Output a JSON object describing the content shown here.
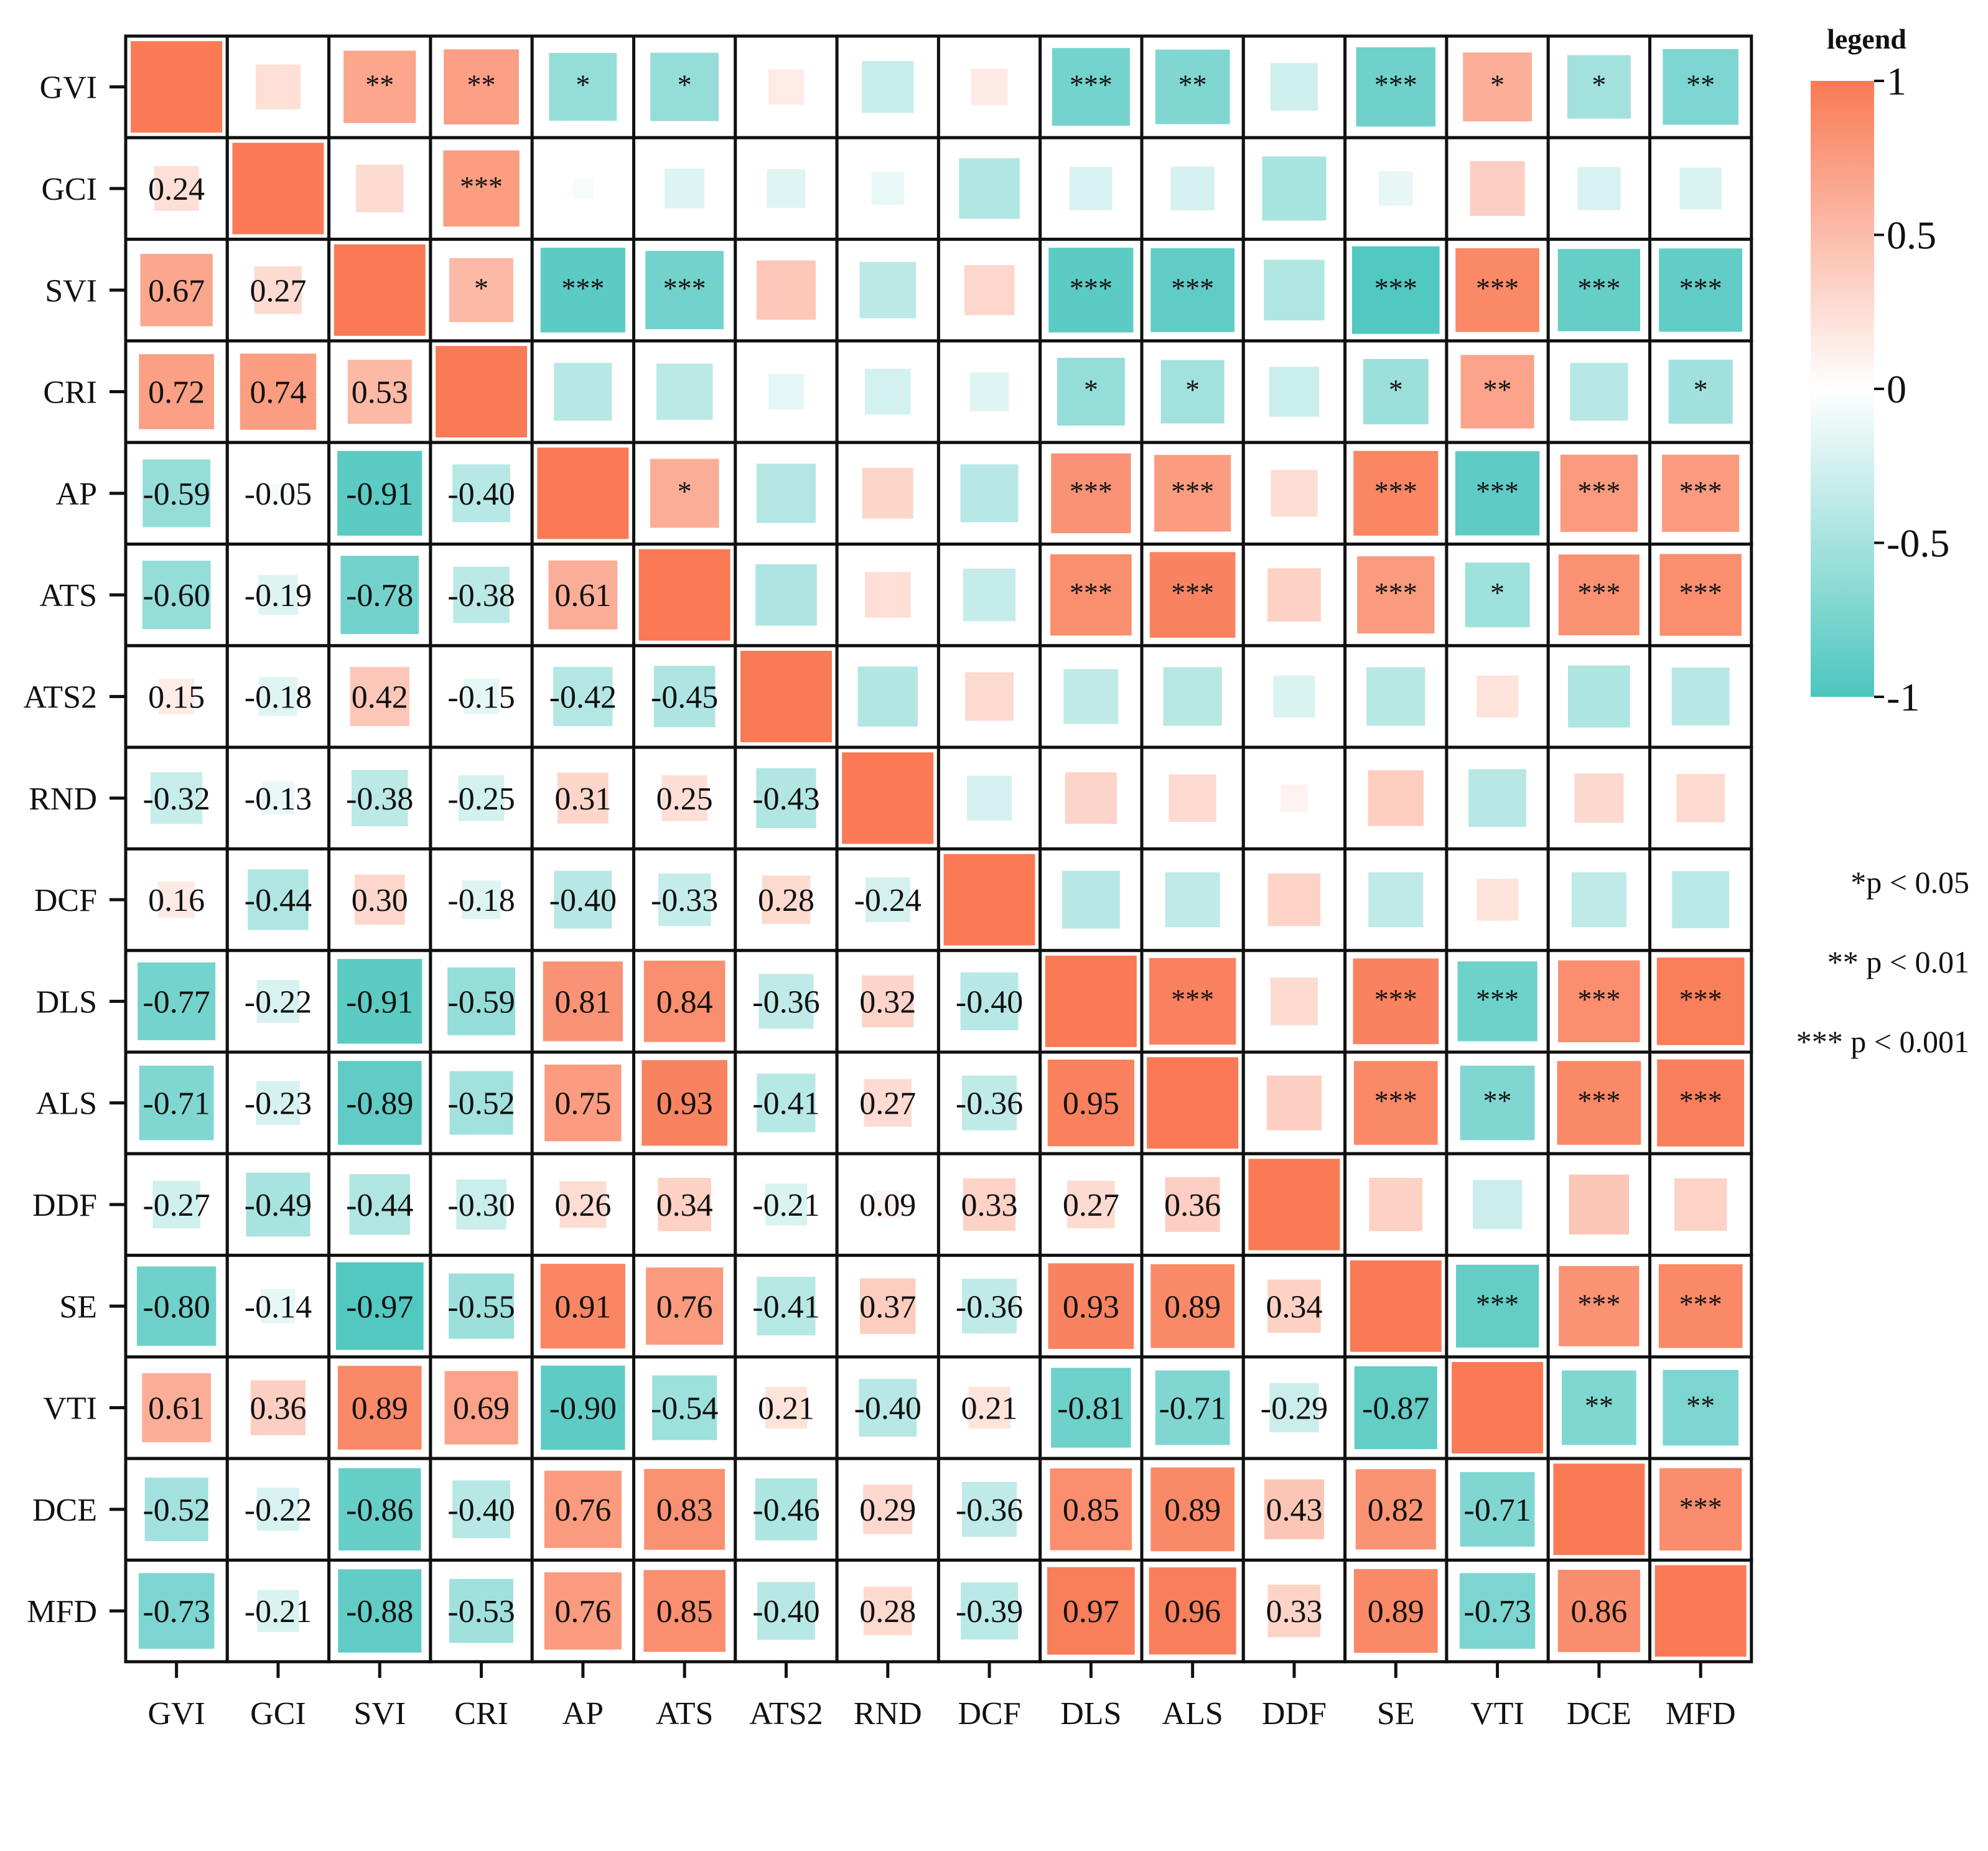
{
  "chart_data": {
    "type": "heatmap",
    "variant": "correlation-matrix",
    "lower_triangle": "correlation values (text labels)",
    "upper_triangle": "significance stars",
    "variables": [
      "GVI",
      "GCI",
      "SVI",
      "CRI",
      "AP",
      "ATS",
      "ATS2",
      "RND",
      "DCF",
      "DLS",
      "ALS",
      "DDF",
      "SE",
      "VTI",
      "DCE",
      "MFD"
    ],
    "value_range": [
      -1,
      1
    ],
    "matrix": [
      [
        1,
        0.24,
        0.67,
        0.72,
        -0.59,
        -0.6,
        0.15,
        -0.32,
        0.16,
        -0.77,
        -0.71,
        -0.27,
        -0.8,
        0.61,
        -0.52,
        -0.73
      ],
      [
        0.24,
        1,
        0.27,
        0.74,
        -0.05,
        -0.19,
        -0.18,
        -0.13,
        -0.44,
        -0.22,
        -0.23,
        -0.49,
        -0.14,
        0.36,
        -0.22,
        -0.21
      ],
      [
        0.67,
        0.27,
        1,
        0.53,
        -0.91,
        -0.78,
        0.42,
        -0.38,
        0.3,
        -0.91,
        -0.89,
        -0.44,
        -0.97,
        0.89,
        -0.86,
        -0.88
      ],
      [
        0.72,
        0.74,
        0.53,
        1,
        -0.4,
        -0.38,
        -0.15,
        -0.25,
        -0.18,
        -0.59,
        -0.52,
        -0.3,
        -0.55,
        0.69,
        -0.4,
        -0.53
      ],
      [
        -0.59,
        -0.05,
        -0.91,
        -0.4,
        1,
        0.61,
        -0.42,
        0.31,
        -0.4,
        0.81,
        0.75,
        0.26,
        0.91,
        -0.9,
        0.76,
        0.76
      ],
      [
        -0.6,
        -0.19,
        -0.78,
        -0.38,
        0.61,
        1,
        -0.45,
        0.25,
        -0.33,
        0.84,
        0.93,
        0.34,
        0.76,
        -0.54,
        0.83,
        0.85
      ],
      [
        0.15,
        -0.18,
        0.42,
        -0.15,
        -0.42,
        -0.45,
        1,
        -0.43,
        0.28,
        -0.36,
        -0.41,
        -0.21,
        -0.41,
        0.21,
        -0.46,
        -0.4
      ],
      [
        -0.32,
        -0.13,
        -0.38,
        -0.25,
        0.31,
        0.25,
        -0.43,
        1,
        -0.24,
        0.32,
        0.27,
        0.09,
        0.37,
        -0.4,
        0.29,
        0.28
      ],
      [
        0.16,
        -0.44,
        0.3,
        -0.18,
        -0.4,
        -0.33,
        0.28,
        -0.24,
        1,
        -0.4,
        -0.36,
        0.33,
        -0.36,
        0.21,
        -0.36,
        -0.39
      ],
      [
        -0.77,
        -0.22,
        -0.91,
        -0.59,
        0.81,
        0.84,
        -0.36,
        0.32,
        -0.4,
        1,
        0.95,
        0.27,
        0.93,
        -0.81,
        0.85,
        0.97
      ],
      [
        -0.71,
        -0.23,
        -0.89,
        -0.52,
        0.75,
        0.93,
        -0.41,
        0.27,
        -0.36,
        0.95,
        1,
        0.36,
        0.89,
        -0.71,
        0.89,
        0.96
      ],
      [
        -0.27,
        -0.49,
        -0.44,
        -0.3,
        0.26,
        0.34,
        -0.21,
        0.09,
        0.33,
        0.27,
        0.36,
        1,
        0.34,
        -0.29,
        0.43,
        0.33
      ],
      [
        -0.8,
        -0.14,
        -0.97,
        -0.55,
        0.91,
        0.76,
        -0.41,
        0.37,
        -0.36,
        0.93,
        0.89,
        0.34,
        1,
        -0.87,
        0.82,
        0.89
      ],
      [
        0.61,
        0.36,
        0.89,
        0.69,
        -0.9,
        -0.54,
        0.21,
        -0.4,
        0.21,
        -0.81,
        -0.71,
        -0.29,
        -0.87,
        1,
        -0.71,
        -0.73
      ],
      [
        -0.52,
        -0.22,
        -0.86,
        -0.4,
        0.76,
        0.83,
        -0.46,
        0.29,
        -0.36,
        0.85,
        0.89,
        0.43,
        0.82,
        -0.71,
        1,
        0.86
      ],
      [
        -0.73,
        -0.21,
        -0.88,
        -0.53,
        0.76,
        0.85,
        -0.4,
        0.28,
        -0.39,
        0.97,
        0.96,
        0.33,
        0.89,
        -0.73,
        0.86,
        1
      ]
    ],
    "significance": [
      [
        "",
        "",
        "**",
        "**",
        "*",
        "*",
        "",
        "",
        "",
        "***",
        "**",
        "",
        "***",
        "*",
        "*",
        "**"
      ],
      [
        "",
        "",
        "",
        "***",
        "",
        "",
        "",
        "",
        "",
        "",
        "",
        "",
        "",
        "",
        "",
        ""
      ],
      [
        "",
        "",
        "",
        "*",
        "***",
        "***",
        "",
        "",
        "",
        "***",
        "***",
        "",
        "***",
        "***",
        "***",
        "***"
      ],
      [
        "",
        "",
        "",
        "",
        "",
        "",
        "",
        "",
        "",
        "*",
        "*",
        "",
        "*",
        "**",
        "",
        "*"
      ],
      [
        "",
        "",
        "",
        "",
        "",
        "*",
        "",
        "",
        "",
        "***",
        "***",
        "",
        "***",
        "***",
        "***",
        "***"
      ],
      [
        "",
        "",
        "",
        "",
        "",
        "",
        "",
        "",
        "",
        "***",
        "***",
        "",
        "***",
        "*",
        "***",
        "***"
      ],
      [
        "",
        "",
        "",
        "",
        "",
        "",
        "",
        "",
        "",
        "",
        "",
        "",
        "",
        "",
        "",
        ""
      ],
      [
        "",
        "",
        "",
        "",
        "",
        "",
        "",
        "",
        "",
        "",
        "",
        "",
        "",
        "",
        "",
        ""
      ],
      [
        "",
        "",
        "",
        "",
        "",
        "",
        "",
        "",
        "",
        "",
        "",
        "",
        "",
        "",
        "",
        ""
      ],
      [
        "",
        "",
        "",
        "",
        "",
        "",
        "",
        "",
        "",
        "",
        "***",
        "",
        "***",
        "***",
        "***",
        "***"
      ],
      [
        "",
        "",
        "",
        "",
        "",
        "",
        "",
        "",
        "",
        "",
        "",
        "",
        "***",
        "**",
        "***",
        "***"
      ],
      [
        "",
        "",
        "",
        "",
        "",
        "",
        "",
        "",
        "",
        "",
        "",
        "",
        "",
        "",
        "",
        ""
      ],
      [
        "",
        "",
        "",
        "",
        "",
        "",
        "",
        "",
        "",
        "",
        "",
        "",
        "",
        "***",
        "***",
        "***"
      ],
      [
        "",
        "",
        "",
        "",
        "",
        "",
        "",
        "",
        "",
        "",
        "",
        "",
        "",
        "",
        "**",
        "**"
      ],
      [
        "",
        "",
        "",
        "",
        "",
        "",
        "",
        "",
        "",
        "",
        "",
        "",
        "",
        "",
        "",
        "***"
      ],
      [
        "",
        "",
        "",
        "",
        "",
        "",
        "",
        "",
        "",
        "",
        "",
        "",
        "",
        "",
        "",
        ""
      ]
    ],
    "colorbar": {
      "title": "legend",
      "ticks": [
        1,
        0.5,
        0,
        -0.5,
        -1
      ],
      "tick_labels": [
        "1",
        "0.5",
        "0",
        "-0.5",
        "-1"
      ],
      "colors": {
        "positive": "#F97A55",
        "zero": "#FFFFFF",
        "negative": "#4CC6BE"
      }
    },
    "significance_notes": [
      "*p < 0.05",
      "** p < 0.01",
      "*** p < 0.001"
    ]
  }
}
